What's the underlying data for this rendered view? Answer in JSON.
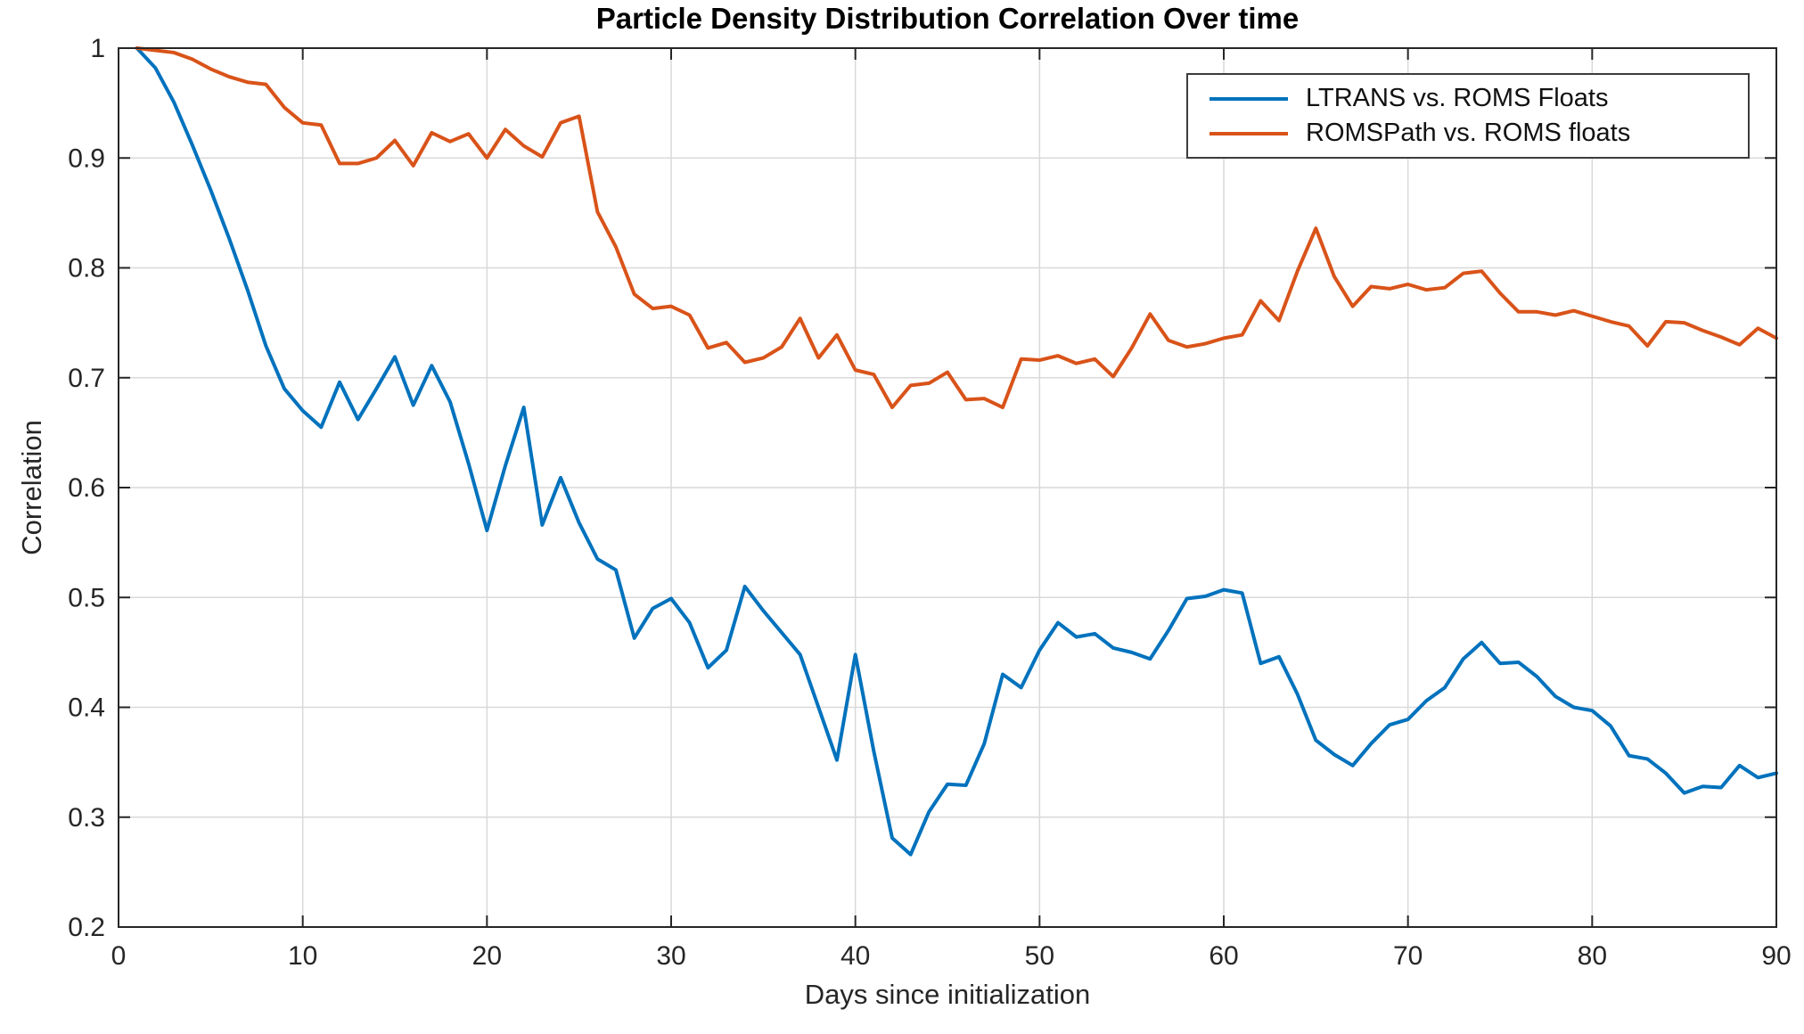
{
  "chart_data": {
    "type": "line",
    "title": "Particle Density Distribution Correlation Over time",
    "xlabel": "Days since initialization",
    "ylabel": "Correlation",
    "xlim": [
      0,
      90
    ],
    "ylim": [
      0.2,
      1.0
    ],
    "grid": true,
    "legend_position": "top-right",
    "colors": {
      "grid": "#d9d9d9",
      "axis": "#262626",
      "text": "#262626",
      "background": "#ffffff"
    },
    "xticks": {
      "values": [
        0,
        10,
        20,
        30,
        40,
        50,
        60,
        70,
        80,
        90
      ],
      "labels": [
        "0",
        "10",
        "20",
        "30",
        "40",
        "50",
        "60",
        "70",
        "80",
        "90"
      ]
    },
    "yticks": {
      "values": [
        0.2,
        0.3,
        0.4,
        0.5,
        0.6,
        0.7,
        0.8,
        0.9,
        1.0
      ],
      "labels": [
        "0.2",
        "0.3",
        "0.4",
        "0.5",
        "0.6",
        "0.7",
        "0.8",
        "0.9",
        "1"
      ]
    },
    "x": [
      1,
      2,
      3,
      4,
      5,
      6,
      7,
      8,
      9,
      10,
      11,
      12,
      13,
      14,
      15,
      16,
      17,
      18,
      19,
      20,
      21,
      22,
      23,
      24,
      25,
      26,
      27,
      28,
      29,
      30,
      31,
      32,
      33,
      34,
      35,
      36,
      37,
      38,
      39,
      40,
      41,
      42,
      43,
      44,
      45,
      46,
      47,
      48,
      49,
      50,
      51,
      52,
      53,
      54,
      55,
      56,
      57,
      58,
      59,
      60,
      61,
      62,
      63,
      64,
      65,
      66,
      67,
      68,
      69,
      70,
      71,
      72,
      73,
      74,
      75,
      76,
      77,
      78,
      79,
      80,
      81,
      82,
      83,
      84,
      85,
      86,
      87,
      88,
      89,
      90
    ],
    "series": [
      {
        "name": "LTRANS vs. ROMS Floats",
        "color": "#0072BD",
        "values": [
          1.0,
          0.982,
          0.951,
          0.912,
          0.871,
          0.827,
          0.78,
          0.729,
          0.69,
          0.67,
          0.655,
          0.696,
          0.662,
          0.69,
          0.719,
          0.675,
          0.711,
          0.678,
          0.622,
          0.561,
          0.62,
          0.673,
          0.566,
          0.609,
          0.568,
          0.535,
          0.525,
          0.463,
          0.49,
          0.499,
          0.477,
          0.436,
          0.452,
          0.51,
          0.488,
          0.468,
          0.448,
          0.4,
          0.352,
          0.448,
          0.36,
          0.281,
          0.266,
          0.305,
          0.33,
          0.329,
          0.367,
          0.43,
          0.418,
          0.452,
          0.477,
          0.464,
          0.467,
          0.454,
          0.45,
          0.444,
          0.47,
          0.499,
          0.501,
          0.507,
          0.504,
          0.44,
          0.446,
          0.412,
          0.37,
          0.357,
          0.347,
          0.367,
          0.384,
          0.389,
          0.406,
          0.418,
          0.444,
          0.459,
          0.44,
          0.441,
          0.428,
          0.41,
          0.4,
          0.397,
          0.383,
          0.356,
          0.353,
          0.34,
          0.322,
          0.328,
          0.327,
          0.347,
          0.336,
          0.34
        ]
      },
      {
        "name": "ROMSPath vs. ROMS floats",
        "color": "#D95319",
        "values": [
          1.0,
          0.998,
          0.996,
          0.99,
          0.981,
          0.974,
          0.969,
          0.967,
          0.946,
          0.932,
          0.93,
          0.895,
          0.895,
          0.9,
          0.916,
          0.893,
          0.923,
          0.915,
          0.922,
          0.9,
          0.926,
          0.911,
          0.901,
          0.932,
          0.938,
          0.851,
          0.819,
          0.776,
          0.763,
          0.765,
          0.757,
          0.727,
          0.732,
          0.714,
          0.718,
          0.728,
          0.754,
          0.718,
          0.739,
          0.707,
          0.703,
          0.673,
          0.693,
          0.695,
          0.705,
          0.68,
          0.681,
          0.673,
          0.717,
          0.716,
          0.72,
          0.713,
          0.717,
          0.701,
          0.727,
          0.758,
          0.734,
          0.728,
          0.731,
          0.736,
          0.739,
          0.77,
          0.752,
          0.797,
          0.836,
          0.792,
          0.765,
          0.783,
          0.781,
          0.785,
          0.78,
          0.782,
          0.795,
          0.797,
          0.777,
          0.76,
          0.76,
          0.757,
          0.761,
          0.756,
          0.751,
          0.747,
          0.729,
          0.751,
          0.75,
          0.743,
          0.737,
          0.73,
          0.745,
          0.736
        ]
      }
    ]
  }
}
